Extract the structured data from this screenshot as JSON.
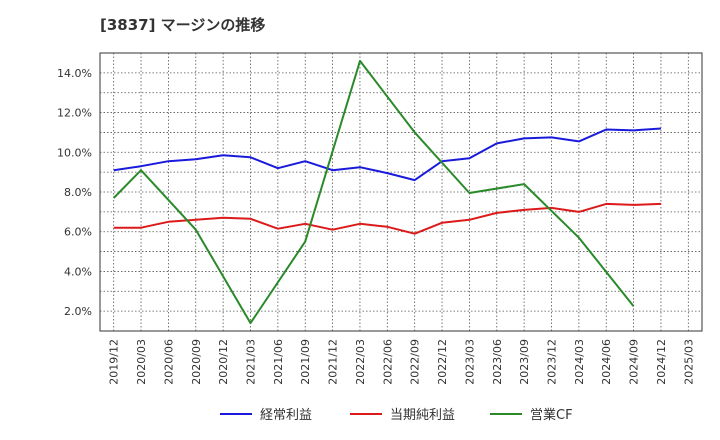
{
  "chart_data": {
    "type": "line",
    "title": "[3837]  マージンの推移",
    "xlabel": "",
    "ylabel": "",
    "ylim": [
      1.0,
      15.0
    ],
    "y_ticks": [
      "2.0%",
      "4.0%",
      "6.0%",
      "8.0%",
      "10.0%",
      "12.0%",
      "14.0%"
    ],
    "y_tick_values": [
      2,
      4,
      6,
      8,
      10,
      12,
      14
    ],
    "grid": true,
    "legend_position": "bottom",
    "x": [
      "2019/12",
      "2020/03",
      "2020/06",
      "2020/09",
      "2020/12",
      "2021/03",
      "2021/06",
      "2021/09",
      "2021/12",
      "2022/03",
      "2022/06",
      "2022/09",
      "2022/12",
      "2023/03",
      "2023/06",
      "2023/09",
      "2023/12",
      "2024/03",
      "2024/06",
      "2024/09",
      "2024/12",
      "2025/03"
    ],
    "series": [
      {
        "name": "経常利益",
        "color": "#1a1adc",
        "values": [
          9.1,
          9.3,
          9.55,
          9.65,
          9.85,
          9.75,
          9.2,
          9.55,
          9.1,
          9.25,
          8.95,
          8.6,
          9.55,
          9.7,
          10.45,
          10.7,
          10.75,
          10.55,
          11.15,
          11.1,
          11.2,
          null
        ]
      },
      {
        "name": "当期純利益",
        "color": "#dc1a1a",
        "values": [
          6.2,
          6.2,
          6.5,
          6.6,
          6.7,
          6.65,
          6.15,
          6.4,
          6.1,
          6.4,
          6.25,
          5.9,
          6.45,
          6.6,
          6.95,
          7.1,
          7.2,
          7.0,
          7.4,
          7.35,
          7.4,
          null
        ]
      },
      {
        "name": "営業CF",
        "color": "#2a8a2a",
        "values": [
          7.7,
          9.1,
          null,
          6.1,
          null,
          1.4,
          null,
          5.5,
          null,
          14.6,
          null,
          11.0,
          null,
          7.95,
          null,
          8.4,
          null,
          5.7,
          null,
          2.25,
          null,
          null
        ]
      }
    ]
  }
}
